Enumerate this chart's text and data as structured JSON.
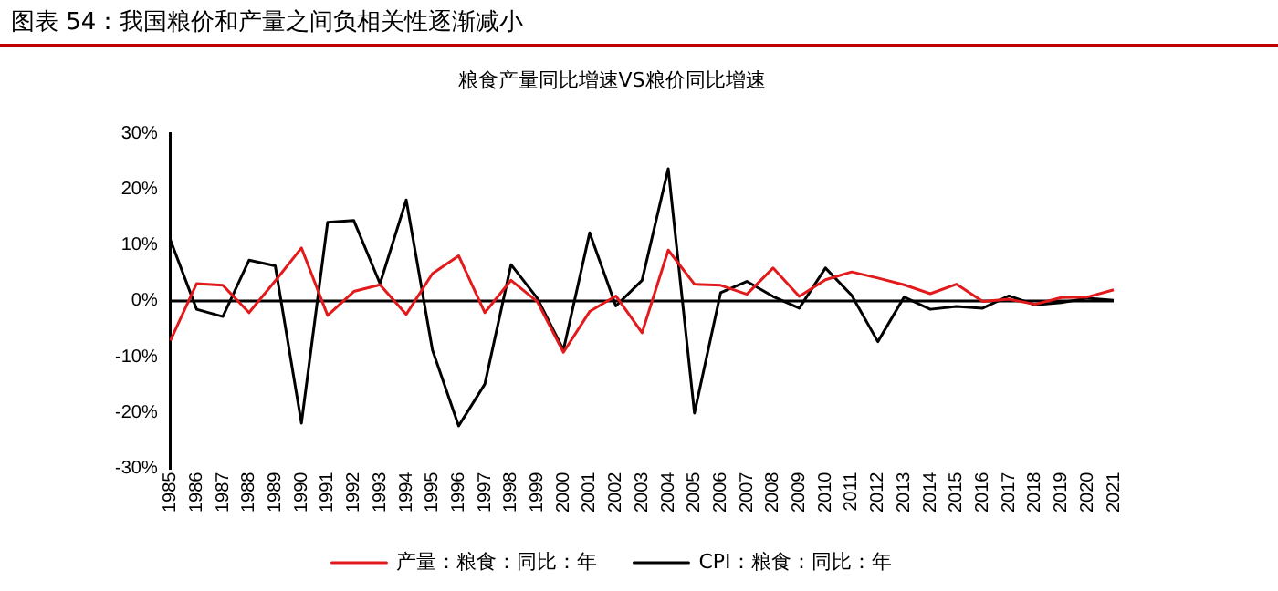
{
  "chart_data": {
    "type": "line",
    "title": "图表 54：我国粮价和产量之间负相关性逐渐减小",
    "subtitle": "粮食产量同比增速VS粮价同比增速",
    "categories": [
      "1985",
      "1986",
      "1987",
      "1988",
      "1989",
      "1990",
      "1991",
      "1992",
      "1993",
      "1994",
      "1995",
      "1996",
      "1997",
      "1998",
      "1999",
      "2000",
      "2001",
      "2002",
      "2003",
      "2004",
      "2005",
      "2006",
      "2007",
      "2008",
      "2009",
      "2010",
      "2011",
      "2012",
      "2013",
      "2014",
      "2015",
      "2016",
      "2017",
      "2018",
      "2019",
      "2020",
      "2021"
    ],
    "series": [
      {
        "name": "产量：粮食：同比：年",
        "color": "#e31a1c",
        "values": [
          -7.1,
          3.1,
          2.8,
          -2.1,
          3.6,
          9.5,
          -2.6,
          1.7,
          2.9,
          -2.4,
          4.9,
          8.1,
          -2.1,
          3.7,
          -0.1,
          -9.2,
          -1.9,
          0.9,
          -5.7,
          9.1,
          3.0,
          2.8,
          1.2,
          5.9,
          0.8,
          3.8,
          5.2,
          4.1,
          2.9,
          1.3,
          3.0,
          -0.1,
          0.3,
          -0.6,
          0.6,
          0.7,
          2.0
        ]
      },
      {
        "name": "CPI：粮食：同比：年",
        "color": "#000000",
        "values": [
          10.9,
          -1.5,
          -2.8,
          7.3,
          6.3,
          -21.9,
          14.1,
          14.4,
          3.1,
          18.1,
          -8.8,
          -22.4,
          -14.9,
          6.5,
          0.5,
          -8.8,
          12.2,
          -0.9,
          3.7,
          23.7,
          -20.1,
          1.5,
          3.5,
          0.8,
          -1.3,
          5.9,
          1.0,
          -7.3,
          0.7,
          -1.5,
          -1.0,
          -1.3,
          0.9,
          -0.7,
          -0.3,
          0.5,
          0.1
        ]
      }
    ],
    "ylim": [
      -30,
      30
    ],
    "yticks": [
      {
        "value": -30,
        "label": "-30%"
      },
      {
        "value": -20,
        "label": "-20%"
      },
      {
        "value": -10,
        "label": "-10%"
      },
      {
        "value": 0,
        "label": "0%"
      },
      {
        "value": 10,
        "label": "10%"
      },
      {
        "value": 20,
        "label": "20%"
      },
      {
        "value": 30,
        "label": "30%"
      }
    ],
    "ref_lines": [
      {
        "axis": "y",
        "value": 0,
        "color": "#000000"
      }
    ],
    "grid": false,
    "legend": "bottom",
    "marker": "none",
    "line_style": "solid"
  }
}
